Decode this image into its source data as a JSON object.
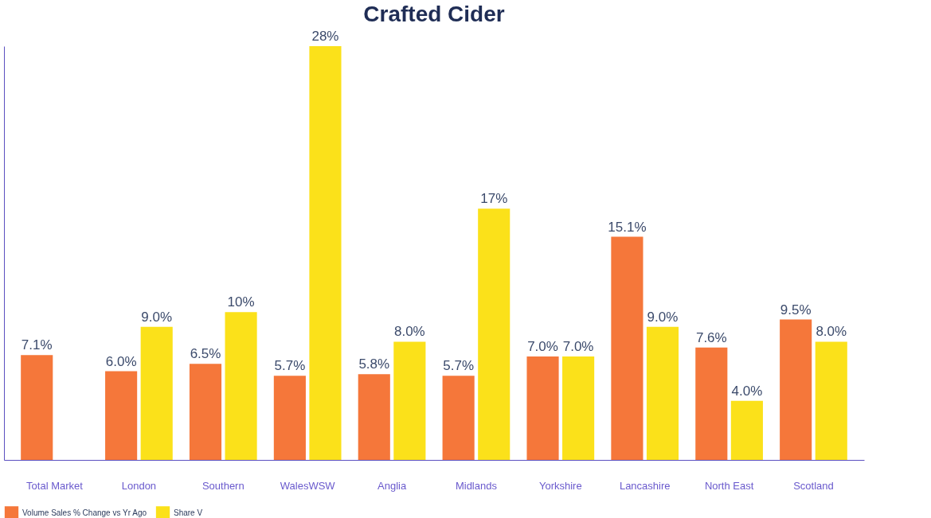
{
  "chart_data": {
    "type": "bar",
    "title": "Crafted Cider",
    "categories": [
      "Total Market",
      "London",
      "Southern",
      "WalesWSW",
      "Anglia",
      "Midlands",
      "Yorkshire",
      "Lancashire",
      "North East",
      "Scotland"
    ],
    "series": [
      {
        "name": "Volume Sales % Change vs Yr Ago",
        "color": "#f5773a",
        "values": [
          7.1,
          6.0,
          6.5,
          5.7,
          5.8,
          5.7,
          7.0,
          15.1,
          7.6,
          9.5
        ],
        "value_labels": [
          "7.1%",
          "6.0%",
          "6.5%",
          "5.7%",
          "5.8%",
          "5.7%",
          "7.0%",
          "15.1%",
          "7.6%",
          "9.5%"
        ]
      },
      {
        "name": "Share V",
        "color": "#fbe11a",
        "values": [
          null,
          9.0,
          10,
          28,
          8.0,
          17,
          7.0,
          9.0,
          4.0,
          8.0
        ],
        "value_labels": [
          null,
          "9.0%",
          "10%",
          "28%",
          "8.0%",
          "17%",
          "7.0%",
          "9.0%",
          "4.0%",
          "8.0%"
        ]
      }
    ],
    "legend": "bottom",
    "grid": false
  }
}
